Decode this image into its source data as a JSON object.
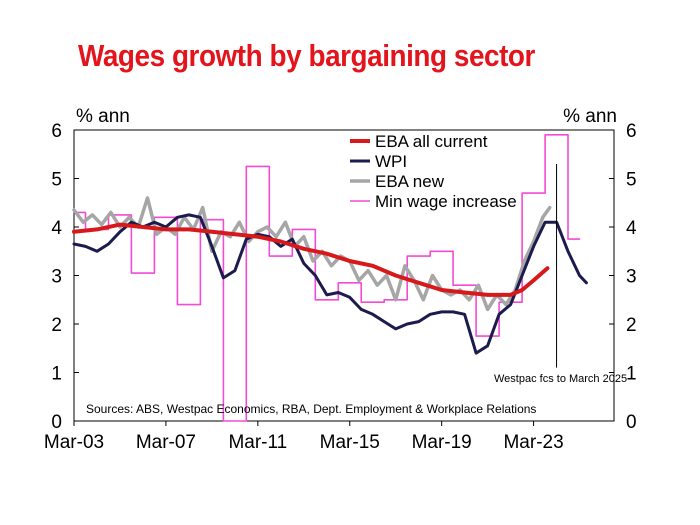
{
  "chart_data": {
    "type": "line",
    "title": "Wages growth by bargaining sector",
    "ylabel_left": "% ann",
    "ylabel_right": "% ann",
    "ylim": [
      0,
      6
    ],
    "yticks": [
      0,
      1,
      2,
      3,
      4,
      5,
      6
    ],
    "xlim": [
      2003.0,
      2026.5
    ],
    "xticks": [
      {
        "label": "Mar-03",
        "x": 2003.0
      },
      {
        "label": "Mar-07",
        "x": 2007.0
      },
      {
        "label": "Mar-11",
        "x": 2011.0
      },
      {
        "label": "Mar-15",
        "x": 2015.0
      },
      {
        "label": "Mar-19",
        "x": 2019.0
      },
      {
        "label": "Mar-23",
        "x": 2023.0
      }
    ],
    "legend_position": "top-right",
    "annotation": {
      "text": "Westpac fcs to March 2025",
      "x": 2024.0
    },
    "source": "Sources: ABS, Westpac Economics, RBA, Dept. Employment & Workplace Relations",
    "series": [
      {
        "name": "EBA all current",
        "color": "#d7191c",
        "width": 4,
        "step": false,
        "points": [
          [
            2003.0,
            3.9
          ],
          [
            2004.0,
            3.95
          ],
          [
            2005.0,
            4.05
          ],
          [
            2006.0,
            4.0
          ],
          [
            2007.0,
            3.95
          ],
          [
            2008.0,
            3.95
          ],
          [
            2009.0,
            3.9
          ],
          [
            2010.0,
            3.85
          ],
          [
            2011.0,
            3.8
          ],
          [
            2012.0,
            3.7
          ],
          [
            2013.0,
            3.55
          ],
          [
            2014.0,
            3.45
          ],
          [
            2015.0,
            3.3
          ],
          [
            2016.0,
            3.2
          ],
          [
            2017.0,
            3.0
          ],
          [
            2018.0,
            2.85
          ],
          [
            2019.0,
            2.7
          ],
          [
            2020.0,
            2.65
          ],
          [
            2021.0,
            2.6
          ],
          [
            2022.0,
            2.6
          ],
          [
            2022.5,
            2.7
          ],
          [
            2023.0,
            2.9
          ],
          [
            2023.6,
            3.15
          ]
        ]
      },
      {
        "name": "WPI",
        "color": "#1b1b4d",
        "width": 3,
        "step": false,
        "points": [
          [
            2003.0,
            3.65
          ],
          [
            2003.5,
            3.6
          ],
          [
            2004.0,
            3.5
          ],
          [
            2004.5,
            3.65
          ],
          [
            2005.0,
            3.9
          ],
          [
            2005.5,
            4.1
          ],
          [
            2006.0,
            4.0
          ],
          [
            2006.5,
            4.1
          ],
          [
            2007.0,
            4.0
          ],
          [
            2007.5,
            4.2
          ],
          [
            2008.0,
            4.25
          ],
          [
            2008.5,
            4.2
          ],
          [
            2009.0,
            3.6
          ],
          [
            2009.5,
            2.95
          ],
          [
            2010.0,
            3.1
          ],
          [
            2010.5,
            3.75
          ],
          [
            2011.0,
            3.85
          ],
          [
            2011.5,
            3.8
          ],
          [
            2012.0,
            3.6
          ],
          [
            2012.5,
            3.75
          ],
          [
            2013.0,
            3.25
          ],
          [
            2013.5,
            3.0
          ],
          [
            2014.0,
            2.6
          ],
          [
            2014.5,
            2.65
          ],
          [
            2015.0,
            2.55
          ],
          [
            2015.5,
            2.3
          ],
          [
            2016.0,
            2.2
          ],
          [
            2016.5,
            2.05
          ],
          [
            2017.0,
            1.9
          ],
          [
            2017.5,
            2.0
          ],
          [
            2018.0,
            2.05
          ],
          [
            2018.5,
            2.2
          ],
          [
            2019.0,
            2.25
          ],
          [
            2019.5,
            2.25
          ],
          [
            2020.0,
            2.2
          ],
          [
            2020.5,
            1.4
          ],
          [
            2021.0,
            1.55
          ],
          [
            2021.5,
            2.2
          ],
          [
            2022.0,
            2.4
          ],
          [
            2022.5,
            3.0
          ],
          [
            2023.0,
            3.6
          ],
          [
            2023.5,
            4.1
          ],
          [
            2024.0,
            4.1
          ],
          [
            2024.5,
            3.5
          ],
          [
            2025.0,
            3.0
          ],
          [
            2025.3,
            2.85
          ]
        ]
      },
      {
        "name": "EBA new",
        "color": "#a6a6a6",
        "width": 3.5,
        "step": false,
        "points": [
          [
            2003.0,
            4.35
          ],
          [
            2003.4,
            4.1
          ],
          [
            2003.8,
            4.25
          ],
          [
            2004.2,
            4.05
          ],
          [
            2004.6,
            4.3
          ],
          [
            2005.0,
            4.0
          ],
          [
            2005.4,
            4.2
          ],
          [
            2005.8,
            4.0
          ],
          [
            2006.2,
            4.6
          ],
          [
            2006.6,
            3.85
          ],
          [
            2007.0,
            4.0
          ],
          [
            2007.4,
            3.85
          ],
          [
            2007.8,
            4.2
          ],
          [
            2008.2,
            3.95
          ],
          [
            2008.6,
            4.4
          ],
          [
            2009.0,
            3.5
          ],
          [
            2009.4,
            3.9
          ],
          [
            2009.8,
            3.8
          ],
          [
            2010.2,
            4.1
          ],
          [
            2010.6,
            3.7
          ],
          [
            2011.0,
            3.9
          ],
          [
            2011.4,
            4.0
          ],
          [
            2011.8,
            3.8
          ],
          [
            2012.2,
            4.1
          ],
          [
            2012.6,
            3.6
          ],
          [
            2013.0,
            3.8
          ],
          [
            2013.4,
            3.3
          ],
          [
            2013.8,
            3.5
          ],
          [
            2014.2,
            3.2
          ],
          [
            2014.6,
            3.4
          ],
          [
            2015.0,
            3.3
          ],
          [
            2015.4,
            2.9
          ],
          [
            2015.8,
            3.1
          ],
          [
            2016.2,
            2.8
          ],
          [
            2016.6,
            3.0
          ],
          [
            2017.0,
            2.5
          ],
          [
            2017.4,
            3.2
          ],
          [
            2017.8,
            2.9
          ],
          [
            2018.2,
            2.5
          ],
          [
            2018.6,
            3.0
          ],
          [
            2019.0,
            2.7
          ],
          [
            2019.4,
            2.6
          ],
          [
            2019.8,
            2.7
          ],
          [
            2020.2,
            2.5
          ],
          [
            2020.6,
            2.8
          ],
          [
            2021.0,
            2.3
          ],
          [
            2021.4,
            2.6
          ],
          [
            2021.8,
            2.4
          ],
          [
            2022.2,
            2.7
          ],
          [
            2022.6,
            3.3
          ],
          [
            2023.0,
            3.7
          ],
          [
            2023.4,
            4.2
          ],
          [
            2023.7,
            4.4
          ]
        ]
      },
      {
        "name": "Min wage increase",
        "color": "#f24bd6",
        "width": 1.6,
        "step": true,
        "points": [
          [
            2003.0,
            4.3
          ],
          [
            2003.5,
            3.95
          ],
          [
            2004.5,
            4.25
          ],
          [
            2005.5,
            3.05
          ],
          [
            2006.5,
            4.2
          ],
          [
            2007.5,
            2.4
          ],
          [
            2008.5,
            4.15
          ],
          [
            2009.5,
            0.0
          ],
          [
            2010.5,
            5.25
          ],
          [
            2011.5,
            3.4
          ],
          [
            2012.5,
            3.95
          ],
          [
            2013.5,
            2.5
          ],
          [
            2014.5,
            2.85
          ],
          [
            2015.5,
            2.45
          ],
          [
            2016.5,
            2.5
          ],
          [
            2017.5,
            3.4
          ],
          [
            2018.5,
            3.5
          ],
          [
            2019.5,
            2.8
          ],
          [
            2020.5,
            1.75
          ],
          [
            2021.5,
            2.45
          ],
          [
            2022.5,
            4.7
          ],
          [
            2023.5,
            5.9
          ],
          [
            2024.5,
            3.75
          ]
        ]
      }
    ]
  }
}
